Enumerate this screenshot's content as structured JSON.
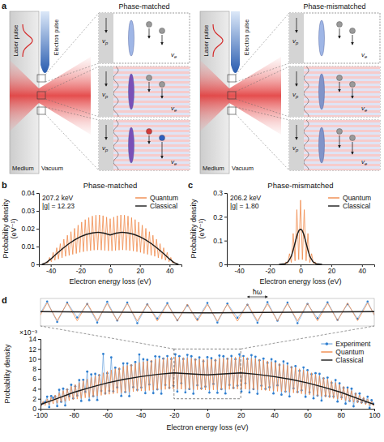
{
  "diagram": {
    "label": "a",
    "panels": [
      {
        "title": "Phase-matched",
        "laser": "Laser pulse",
        "electron": "Electron pulse",
        "medium": "Medium",
        "vacuum": "Vacuum",
        "phase_velocity": {
          "base": "v",
          "sub": "p"
        },
        "electron_velocity": {
          "base": "v",
          "sub": "e"
        }
      },
      {
        "title": "Phase-mismatched",
        "laser": "Laser pulse",
        "electron": "Electron pulse",
        "medium": "Medium",
        "vacuum": "Vacuum",
        "phase_velocity": {
          "base": "v",
          "sub": "p"
        },
        "electron_velocity": {
          "base": "v",
          "sub": "e"
        }
      }
    ]
  },
  "chart_data": [
    {
      "label": "b",
      "title": "Phase-matched",
      "type": "line",
      "x_label": "Electron energy loss (eV)",
      "y_label": "Probability density (eV⁻¹)",
      "xlim": [
        -48,
        48
      ],
      "ylim": [
        0,
        0.04
      ],
      "xticks": [
        -40,
        -20,
        0,
        20,
        40
      ],
      "yticks": [
        0,
        0.01,
        0.02,
        0.03,
        0.04
      ],
      "annotations": [
        "207.2 keV",
        "|g| = 12.23"
      ],
      "legend": "top-right",
      "x": [
        -45.6,
        -44.4,
        -43.2,
        -42,
        -40.8,
        -39.6,
        -38.4,
        -37.2,
        -36,
        -34.8,
        -33.6,
        -32.4,
        -31.2,
        -30,
        -28.8,
        -27.6,
        -26.4,
        -25.2,
        -24,
        -22.8,
        -21.6,
        -20.4,
        -19.2,
        -18,
        -16.8,
        -15.6,
        -14.4,
        -13.2,
        -12,
        -10.8,
        -9.6,
        -8.4,
        -7.2,
        -6,
        -4.8,
        -3.6,
        -2.4,
        -1.2,
        0,
        1.2,
        2.4,
        3.6,
        4.8,
        6,
        7.2,
        8.4,
        9.6,
        10.8,
        12,
        13.2,
        14.4,
        15.6,
        16.8,
        18,
        19.2,
        20.4,
        21.6,
        22.8,
        24,
        25.2,
        26.4,
        27.6,
        28.8,
        30,
        31.2,
        32.4,
        33.6,
        34.8,
        36,
        37.2,
        38.4,
        39.6,
        40.8,
        42,
        43.2,
        44.4,
        45.6
      ],
      "series": [
        {
          "name": "Quantum",
          "color": "#f08a4b",
          "line_style": "solid",
          "values": [
            0.0001,
            0.0002,
            0.0014,
            0.0007,
            0.0039,
            0.0015,
            0.0067,
            0.0023,
            0.0093,
            0.003,
            0.0116,
            0.0037,
            0.0141,
            0.0045,
            0.0163,
            0.005,
            0.0183,
            0.0056,
            0.0202,
            0.0061,
            0.022,
            0.0067,
            0.0237,
            0.0071,
            0.0251,
            0.0075,
            0.0262,
            0.0077,
            0.0271,
            0.008,
            0.0276,
            0.0081,
            0.0277,
            0.008,
            0.0273,
            0.0078,
            0.0265,
            0.0076,
            0.0256,
            0.0076,
            0.0265,
            0.0078,
            0.0273,
            0.008,
            0.0277,
            0.0081,
            0.0276,
            0.008,
            0.0271,
            0.0077,
            0.0262,
            0.0075,
            0.0251,
            0.0071,
            0.0237,
            0.0067,
            0.022,
            0.0061,
            0.0202,
            0.0056,
            0.0183,
            0.005,
            0.0163,
            0.0045,
            0.0141,
            0.0037,
            0.0116,
            0.003,
            0.0093,
            0.0023,
            0.0067,
            0.0015,
            0.0039,
            0.0007,
            0.0014,
            0.0002,
            0.0001
          ]
        },
        {
          "name": "Classical",
          "color": "#1a1a1a",
          "line_style": "solid",
          "x": [
            -46,
            -43,
            -40,
            -36,
            -32,
            -28,
            -24,
            -20,
            -16,
            -12,
            -8,
            -4,
            0,
            4,
            8,
            12,
            16,
            20,
            24,
            28,
            32,
            36,
            40,
            43,
            46
          ],
          "values": [
            0,
            0.001,
            0.003,
            0.006,
            0.0089,
            0.0115,
            0.0137,
            0.0155,
            0.0168,
            0.0176,
            0.018,
            0.0175,
            0.0165,
            0.0175,
            0.018,
            0.0176,
            0.0168,
            0.0155,
            0.0137,
            0.0115,
            0.0089,
            0.006,
            0.003,
            0.001,
            0
          ]
        }
      ]
    },
    {
      "label": "c",
      "title": "Phase-mismatched",
      "type": "line",
      "x_label": "Electron energy loss (eV)",
      "y_label": "Probability density (eV⁻¹)",
      "xlim": [
        -48,
        48
      ],
      "ylim": [
        0,
        0.3
      ],
      "xticks": [
        -40,
        -20,
        0,
        20,
        40
      ],
      "yticks": [
        0,
        0.1,
        0.2,
        0.3
      ],
      "annotations": [
        "206.2 keV",
        "|g| = 1.80"
      ],
      "legend": "top-right",
      "x": [
        -12,
        -10.8,
        -9.6,
        -8.4,
        -7.2,
        -6,
        -4.8,
        -3.6,
        -2.4,
        -1.2,
        0,
        1.2,
        2.4,
        3.6,
        4.8,
        6,
        7.2,
        8.4,
        9.6,
        10.8,
        12
      ],
      "series": [
        {
          "name": "Quantum",
          "color": "#f08a4b",
          "line_style": "solid",
          "values": [
            0,
            0.0005,
            0.01,
            0.003,
            0.045,
            0.008,
            0.13,
            0.015,
            0.23,
            0.02,
            0.27,
            0.02,
            0.23,
            0.015,
            0.13,
            0.008,
            0.045,
            0.003,
            0.01,
            0.0005,
            0
          ]
        },
        {
          "name": "Classical",
          "color": "#1a1a1a",
          "line_style": "solid",
          "x": [
            -14,
            -10,
            -8,
            -6,
            -5,
            -4,
            -3,
            -2,
            -1,
            0,
            1,
            2,
            3,
            4,
            5,
            6,
            8,
            10,
            14
          ],
          "values": [
            0,
            0.003,
            0.012,
            0.035,
            0.055,
            0.08,
            0.105,
            0.128,
            0.143,
            0.148,
            0.143,
            0.128,
            0.105,
            0.08,
            0.055,
            0.035,
            0.012,
            0.003,
            0
          ]
        }
      ]
    },
    {
      "label": "d",
      "type": "line",
      "x_label": "Electron energy loss (eV)",
      "y_label": "Probability density",
      "xlim": [
        -100,
        100
      ],
      "ylim": [
        0,
        14
      ],
      "xticks": [
        -100,
        -80,
        -60,
        -40,
        -20,
        0,
        20,
        40,
        60,
        80,
        100
      ],
      "yticks": [
        0,
        2,
        4,
        6,
        8,
        10,
        12,
        14
      ],
      "annotations": [
        "×10⁻³"
      ],
      "legend": "top-right",
      "inset": {
        "xlim": [
          -20,
          20
        ],
        "ylim": [
          2,
          12
        ],
        "tick_labels": false,
        "annotations": [
          "ħω"
        ]
      },
      "x": [
        -99.6,
        -98.4,
        -97.2,
        -96,
        -94.8,
        -93.6,
        -92.4,
        -91.2,
        -90,
        -88.8,
        -87.6,
        -86.4,
        -85.2,
        -84,
        -82.8,
        -81.6,
        -80.4,
        -79.2,
        -78,
        -76.8,
        -75.6,
        -74.4,
        -73.2,
        -72,
        -70.8,
        -69.6,
        -68.4,
        -67.2,
        -66,
        -64.8,
        -63.6,
        -62.4,
        -61.2,
        -60,
        -58.8,
        -57.6,
        -56.4,
        -55.2,
        -54,
        -52.8,
        -51.6,
        -50.4,
        -49.2,
        -48,
        -46.8,
        -45.6,
        -44.4,
        -43.2,
        -42,
        -40.8,
        -39.6,
        -38.4,
        -37.2,
        -36,
        -34.8,
        -33.6,
        -32.4,
        -31.2,
        -30,
        -28.8,
        -27.6,
        -26.4,
        -25.2,
        -24,
        -22.8,
        -21.6,
        -20.4,
        -19.2,
        -18,
        -16.8,
        -15.6,
        -14.4,
        -13.2,
        -12,
        -10.8,
        -9.6,
        -8.4,
        -7.2,
        -6,
        -4.8,
        -3.6,
        -2.4,
        -1.2,
        0,
        1.2,
        2.4,
        3.6,
        4.8,
        6,
        7.2,
        8.4,
        9.6,
        10.8,
        12,
        13.2,
        14.4,
        15.6,
        16.8,
        18,
        19.2,
        20.4,
        21.6,
        22.8,
        24,
        25.2,
        26.4,
        27.6,
        28.8,
        30,
        31.2,
        32.4,
        33.6,
        34.8,
        36,
        37.2,
        38.4,
        39.6,
        40.8,
        42,
        43.2,
        44.4,
        45.6,
        46.8,
        48,
        49.2,
        50.4,
        51.6,
        52.8,
        54,
        55.2,
        56.4,
        57.6,
        58.8,
        60,
        61.2,
        62.4,
        63.6,
        64.8,
        66,
        67.2,
        68.4,
        69.6,
        70.8,
        72,
        73.2,
        74.4,
        75.6,
        76.8,
        78,
        79.2,
        80.4,
        81.6,
        82.8,
        84,
        85.2,
        86.4,
        87.6,
        88.8,
        90,
        91.2,
        92.4,
        93.6,
        94.8,
        96,
        97.2,
        98.4,
        99.6
      ],
      "series": [
        {
          "name": "Experiment",
          "color": "#2f7fd0",
          "marker": "circle",
          "line_style": "solid",
          "values": [
            0.8,
            1.11,
            1.35,
            2.43,
            0.31,
            2.55,
            2.17,
            2.47,
            0.53,
            3.79,
            1.39,
            4.03,
            0.66,
            3.86,
            2.52,
            4.8,
            2.09,
            4.5,
            2.63,
            5.75,
            1.56,
            5.8,
            3.39,
            7.45,
            1.72,
            6.89,
            2.54,
            7.0,
            1.76,
            6.72,
            3.58,
            11.0,
            3.1,
            7.14,
            3.6,
            10.3,
            3.5,
            8.23,
            4.29,
            7.97,
            2.58,
            9.11,
            3.37,
            9.1,
            2.54,
            8.7,
            4.32,
            9.39,
            3.79,
            10.9,
            4.26,
            9.95,
            3.12,
            9.81,
            4.87,
            9.47,
            3.13,
            10.53,
            3.9,
            10.45,
            3.03,
            10.05,
            4.77,
            10.57,
            4.22,
            9.97,
            4.65,
            10.91,
            3.44,
            10.55,
            5.11,
            9.98,
            3.28,
            10.81,
            3.96,
            10.54,
            3.03,
            9.86,
            4.71,
            10.3,
            4.08,
            9.53,
            4.45,
            10.36,
            3.25,
            10.13,
            4.98,
            9.7,
            3.21,
            10.66,
            3.93,
            10.54,
            3.06,
            10.01,
            4.78,
            10.58,
            4.21,
            9.95,
            4.64,
            10.91,
            3.45,
            10.57,
            5.12,
            9.97,
            3.27,
            10.75,
            3.93,
            10.45,
            3.0,
            9.73,
            4.63,
            10.07,
            3.97,
            9.21,
            4.32,
            9.95,
            3.06,
            9.49,
            4.69,
            8.79,
            2.82,
            9.5,
            3.44,
            9.1,
            2.47,
            8.31,
            4.08,
            8.57,
            3.39,
            7.63,
            3.7,
            8.29,
            2.4,
            7.74,
            3.3,
            6.92,
            2.08,
            7.12,
            2.66,
            7.0,
            1.64,
            6.09,
            2.62,
            6.25,
            2.49,
            5.2,
            2.46,
            5.75,
            1.43,
            5.1,
            2.29,
            4.2,
            1.02,
            4.26,
            1.56,
            4.03,
            0.49,
            2.99,
            1.43,
            3.07,
            1.27,
            1.95,
            1.21,
            2.43,
            0.15,
            1.71,
            1.0
          ]
        },
        {
          "name": "Quantum",
          "color": "#f08a4b",
          "line_style": "solid",
          "values": [
            0.5,
            1.51,
            0.65,
            1.93,
            0.81,
            2.35,
            0.97,
            2.77,
            1.13,
            3.19,
            1.29,
            3.63,
            1.46,
            4.06,
            1.62,
            4.5,
            1.79,
            4.9,
            1.93,
            5.25,
            2.06,
            5.6,
            2.19,
            5.95,
            2.32,
            6.29,
            2.44,
            6.6,
            2.56,
            6.92,
            2.68,
            7.22,
            2.8,
            7.54,
            2.9,
            7.79,
            3.0,
            8.03,
            3.09,
            8.27,
            3.18,
            8.51,
            3.27,
            8.7,
            3.34,
            8.9,
            3.42,
            9.09,
            3.49,
            9.29,
            3.56,
            9.45,
            3.62,
            9.61,
            3.67,
            9.77,
            3.73,
            9.93,
            3.8,
            10.05,
            3.83,
            10.15,
            3.87,
            10.27,
            3.92,
            10.37,
            3.95,
            10.41,
            3.94,
            10.35,
            3.91,
            10.28,
            3.88,
            10.21,
            3.86,
            10.14,
            3.83,
            10.06,
            3.81,
            10.0,
            3.78,
            9.93,
            3.75,
            9.86,
            3.75,
            9.93,
            3.78,
            10.0,
            3.81,
            10.06,
            3.83,
            10.14,
            3.86,
            10.21,
            3.88,
            10.28,
            3.91,
            10.35,
            3.94,
            10.41,
            3.95,
            10.37,
            3.92,
            10.27,
            3.87,
            10.15,
            3.83,
            10.05,
            3.8,
            9.93,
            3.73,
            9.77,
            3.67,
            9.61,
            3.62,
            9.45,
            3.56,
            9.29,
            3.49,
            9.09,
            3.42,
            8.9,
            3.34,
            8.7,
            3.27,
            8.51,
            3.18,
            8.27,
            3.09,
            8.03,
            3.0,
            7.79,
            2.9,
            7.54,
            2.8,
            7.22,
            2.68,
            6.92,
            2.56,
            6.6,
            2.44,
            6.29,
            2.32,
            5.95,
            2.19,
            5.6,
            2.06,
            5.25,
            1.93,
            4.9,
            1.79,
            4.5,
            1.62,
            4.06,
            1.46,
            3.63,
            1.29,
            3.19,
            1.13,
            2.77,
            0.97,
            2.35,
            0.81,
            1.93,
            0.65,
            1.51,
            0.5
          ]
        },
        {
          "name": "Classical",
          "color": "#1a1a1a",
          "line_style": "solid",
          "x": [
            -100,
            -90,
            -80,
            -70,
            -60,
            -50,
            -40,
            -30,
            -20,
            -10,
            0,
            10,
            20,
            30,
            40,
            50,
            60,
            70,
            80,
            90,
            100
          ],
          "values": [
            0.85,
            2.05,
            3.3,
            4.3,
            5.2,
            5.9,
            6.45,
            6.9,
            7.2,
            7.0,
            6.8,
            7.0,
            7.2,
            6.9,
            6.45,
            5.9,
            5.2,
            4.3,
            3.3,
            2.05,
            0.85
          ]
        }
      ]
    }
  ]
}
